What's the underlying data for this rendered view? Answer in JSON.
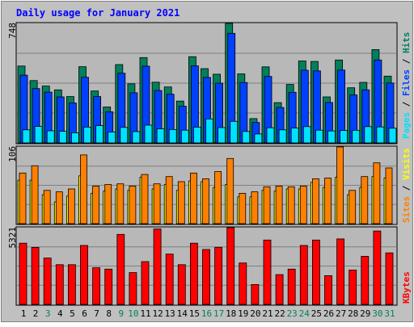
{
  "chart_data": [
    {
      "type": "bar",
      "title": "Daily usage for January 2021",
      "ymax_label": "748",
      "ylim": [
        0,
        748
      ],
      "grid": true,
      "categories": [
        "1",
        "2",
        "3",
        "4",
        "5",
        "6",
        "7",
        "8",
        "9",
        "10",
        "11",
        "12",
        "13",
        "14",
        "15",
        "16",
        "17",
        "18",
        "19",
        "20",
        "21",
        "22",
        "23",
        "24",
        "25",
        "26",
        "27",
        "28",
        "29",
        "30",
        "31"
      ],
      "weekend_days": [
        3,
        9,
        10,
        16,
        17,
        23,
        24,
        30,
        31
      ],
      "series": [
        {
          "name": "Hits",
          "color": "#00805c",
          "values": [
            481,
            390,
            356,
            332,
            290,
            477,
            325,
            225,
            490,
            370,
            534,
            380,
            350,
            262,
            540,
            465,
            430,
            748,
            432,
            152,
            476,
            252,
            366,
            513,
            510,
            288,
            519,
            345,
            379,
            584,
            418
          ]
        },
        {
          "name": "Files",
          "color": "#0040ff",
          "values": [
            424,
            340,
            318,
            288,
            250,
            411,
            290,
            195,
            436,
            314,
            480,
            328,
            305,
            230,
            482,
            410,
            374,
            686,
            378,
            128,
            416,
            222,
            317,
            455,
            451,
            253,
            456,
            300,
            332,
            519,
            375
          ]
        },
        {
          "name": "Pages",
          "color": "#00e0ff",
          "values": [
            82,
            103,
            76,
            73,
            63,
            99,
            108,
            68,
            97,
            71,
            111,
            88,
            84,
            80,
            99,
            150,
            96,
            135,
            72,
            56,
            95,
            82,
            93,
            102,
            80,
            75,
            78,
            79,
            102,
            100,
            92
          ]
        }
      ]
    },
    {
      "type": "bar",
      "ymax_label": "106",
      "ylim": [
        0,
        106
      ],
      "grid": true,
      "series": [
        {
          "name": "Visits",
          "color": "#ffff00",
          "values": [
            60,
            60,
            40,
            30,
            38,
            66,
            42,
            45,
            48,
            46,
            64,
            48,
            54,
            46,
            59,
            58,
            50,
            54,
            37,
            37,
            46,
            45,
            48,
            48,
            57,
            50,
            64,
            40,
            50,
            65,
            63
          ]
        },
        {
          "name": "Sites",
          "color": "#ff8000",
          "values": [
            70,
            80,
            46,
            44,
            48,
            95,
            52,
            54,
            55,
            52,
            68,
            55,
            65,
            58,
            70,
            62,
            72,
            90,
            42,
            44,
            51,
            52,
            51,
            52,
            62,
            63,
            106,
            46,
            65,
            84,
            77
          ]
        }
      ]
    },
    {
      "type": "bar",
      "ymax_label": "5321",
      "ylim": [
        0,
        5321
      ],
      "grid": true,
      "series": [
        {
          "name": "KBytes",
          "color": "#ff0000",
          "values": [
            4245,
            3956,
            3215,
            2755,
            2755,
            4090,
            2541,
            2449,
            4855,
            2205,
            2969,
            5234,
            3490,
            2755,
            4245,
            3808,
            3960,
            5321,
            2873,
            1377,
            4465,
            2067,
            2449,
            4090,
            4465,
            1996,
            4543,
            2379,
            3341,
            5092,
            3572
          ]
        }
      ]
    }
  ]
}
